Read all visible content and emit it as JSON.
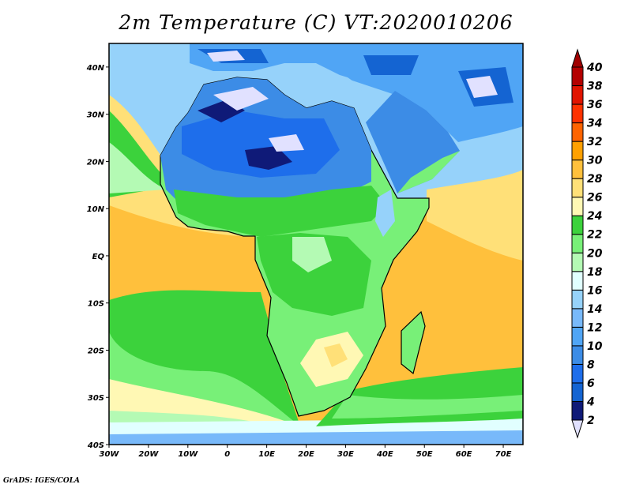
{
  "title": "2m Temperature (C) VT:2020010206",
  "credit": "GrADS: IGES/COLA",
  "chart_data": {
    "type": "heatmap",
    "title": "2m Temperature (C) VT:2020010206",
    "variable": "2m Temperature",
    "units": "C",
    "valid_time": "2020010206",
    "lon_range": [
      -30,
      75
    ],
    "lat_range": [
      -40,
      45
    ],
    "x_ticks": [
      "30W",
      "20W",
      "10W",
      "0",
      "10E",
      "20E",
      "30E",
      "40E",
      "50E",
      "60E",
      "70E"
    ],
    "y_ticks": [
      "40S",
      "30S",
      "20S",
      "10S",
      "EQ",
      "10N",
      "20N",
      "30N",
      "40N"
    ],
    "colorbar": {
      "levels": [
        2,
        4,
        6,
        8,
        10,
        12,
        14,
        16,
        18,
        20,
        22,
        24,
        26,
        28,
        30,
        32,
        34,
        36,
        38,
        40
      ],
      "colors": [
        "#e1e1ff",
        "#0f1a78",
        "#1464d2",
        "#1e6eeb",
        "#3c8ce6",
        "#50a5f5",
        "#78b9fa",
        "#96d2fa",
        "#e1ffff",
        "#b4fab4",
        "#78f078",
        "#3cd23c",
        "#fff8b4",
        "#ffe078",
        "#ffc03c",
        "#ffa000",
        "#ff6400",
        "#ff3200",
        "#e11400",
        "#b40000",
        "#a00000"
      ]
    }
  }
}
